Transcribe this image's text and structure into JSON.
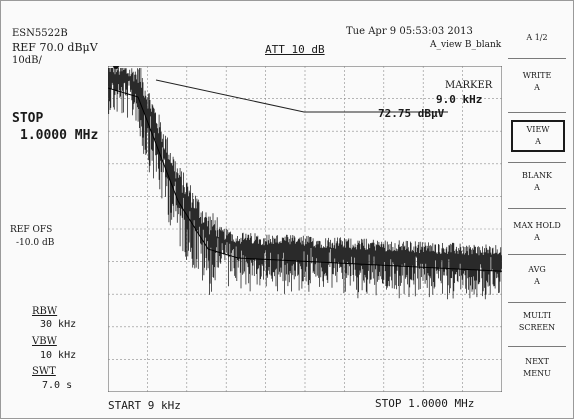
{
  "header": {
    "model": "ESN5522B",
    "ref_level": "REF 70.0 dBμV",
    "scale": "10dB/",
    "datetime": "Tue Apr  9 05:53:03 2013",
    "attenuation": "ATT 10 dB",
    "views": "A_view B_blank"
  },
  "left_panel": {
    "stop_label": "STOP",
    "stop_value": "1.0000 MHz",
    "ref_offset_label": "REF OFS",
    "ref_offset_value": "-10.0 dB",
    "rbw_label": "RBW",
    "rbw_value": "30 kHz",
    "vbw_label": "VBW",
    "vbw_value": "10 kHz",
    "swt_label": "SWT",
    "swt_value": "7.0 s"
  },
  "footer": {
    "start": "START 9 kHz",
    "stop": "STOP 1.0000 MHz"
  },
  "marker": {
    "title": "MARKER",
    "frequency": "9.0 kHz",
    "level": "72.75 dBμV"
  },
  "softkeys": {
    "page": "A 1/2",
    "items": [
      {
        "line1": "WRITE",
        "line2": "A"
      },
      {
        "line1": "VIEW",
        "line2": "A"
      },
      {
        "line1": "BLANK",
        "line2": "A"
      },
      {
        "line1": "MAX HOLD",
        "line2": "A"
      },
      {
        "line1": "AVG",
        "line2": "A"
      },
      {
        "line1": "MULTI",
        "line2": "SCREEN"
      },
      {
        "line1": "NEXT MENU",
        "line2": ""
      }
    ]
  },
  "colors": {
    "trace": "#2a2a2a",
    "grid": "#8c8c8c",
    "background": "#fafafa"
  }
}
